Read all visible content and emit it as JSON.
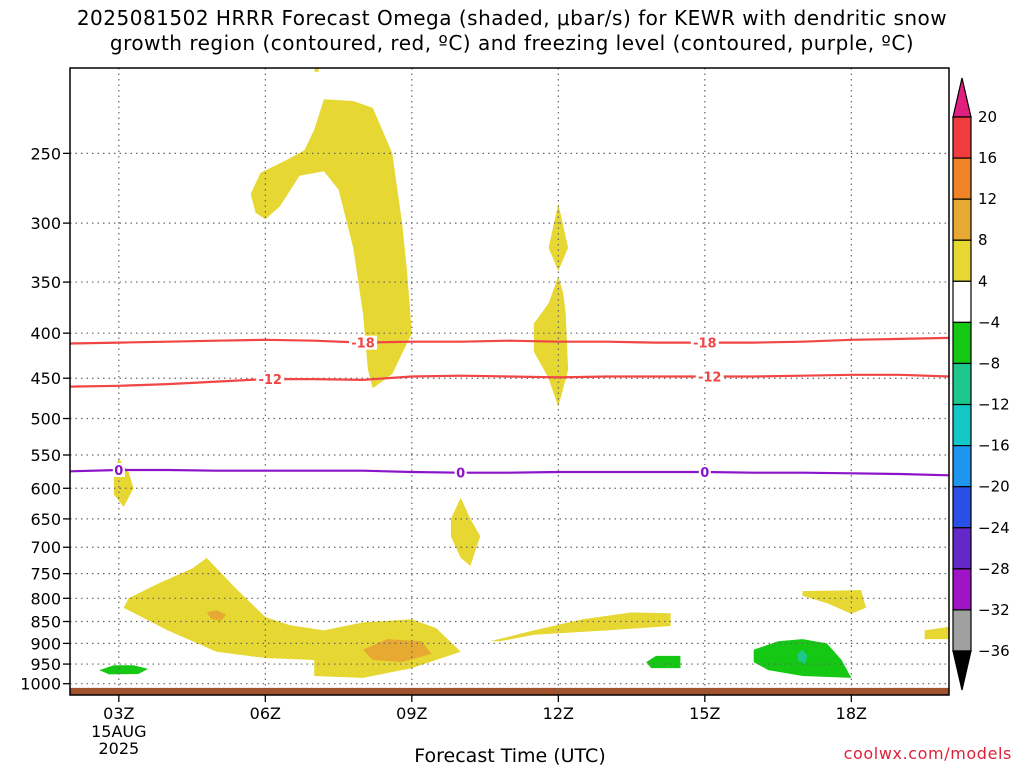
{
  "title_line1": "2025081502 HRRR Forecast Omega (shaded, μbar/s) for KEWR with dendritic snow",
  "title_line2": "growth region (contoured, red, ºC) and freezing level (contoured, purple, ºC)",
  "credit": "coolwx.com/models",
  "chart_data": {
    "type": "time-height cross section",
    "title": "2025081502 HRRR Forecast Omega (shaded, μbar/s) for KEWR with dendritic snow growth region (contoured, red, ºC) and freezing level (contoured, purple, ºC)",
    "xlabel": "Forecast Time (UTC)",
    "ylabel": "",
    "x_range_hours": [
      2,
      20
    ],
    "y_range_hPa": [
      200,
      1030
    ],
    "y_scale": "log-pressure (inverted)",
    "grid": true,
    "x_ticks": [
      {
        "hour": 3,
        "label": "03Z",
        "sub1": "15AUG",
        "sub2": "2025"
      },
      {
        "hour": 6,
        "label": "06Z"
      },
      {
        "hour": 9,
        "label": "09Z"
      },
      {
        "hour": 12,
        "label": "12Z"
      },
      {
        "hour": 15,
        "label": "15Z"
      },
      {
        "hour": 18,
        "label": "18Z"
      }
    ],
    "y_ticks": [
      250,
      300,
      350,
      400,
      450,
      500,
      550,
      600,
      650,
      700,
      750,
      800,
      850,
      900,
      950,
      1000
    ],
    "colorbar": {
      "levels": [
        "20",
        "16",
        "12",
        "8",
        "4",
        "−4",
        "−8",
        "−12",
        "−16",
        "−20",
        "−24",
        "−28",
        "−32",
        "−36"
      ],
      "colors": [
        "#e02080",
        "#f03c3c",
        "#f08228",
        "#e6aa32",
        "#e6d732",
        "#ffffff",
        "#14c814",
        "#1ec88c",
        "#14c8c8",
        "#1e96f0",
        "#2850e6",
        "#6428c8",
        "#a014c8",
        "#a0a0a0",
        "#000000"
      ]
    },
    "contours": [
      {
        "name": "dendritic -18",
        "color": "#f04646",
        "labels": [
          {
            "hour": 8.0,
            "text": "-18"
          },
          {
            "hour": 15.0,
            "text": "-18"
          }
        ],
        "points": [
          [
            2,
            411
          ],
          [
            3,
            410
          ],
          [
            4,
            409
          ],
          [
            5,
            408
          ],
          [
            6,
            407
          ],
          [
            7,
            408
          ],
          [
            8,
            410
          ],
          [
            9,
            409
          ],
          [
            10,
            409
          ],
          [
            11,
            408
          ],
          [
            12,
            409
          ],
          [
            13,
            409
          ],
          [
            14,
            410
          ],
          [
            15,
            410
          ],
          [
            16,
            410
          ],
          [
            17,
            409
          ],
          [
            18,
            407
          ],
          [
            19,
            406
          ],
          [
            20,
            405
          ]
        ]
      },
      {
        "name": "dendritic -12",
        "color": "#f04646",
        "labels": [
          {
            "hour": 6.1,
            "text": "-12"
          },
          {
            "hour": 15.1,
            "text": "-12"
          }
        ],
        "points": [
          [
            2,
            460
          ],
          [
            3,
            459
          ],
          [
            4,
            457
          ],
          [
            5,
            454
          ],
          [
            6,
            451
          ],
          [
            7,
            451
          ],
          [
            8,
            452
          ],
          [
            9,
            448
          ],
          [
            10,
            447
          ],
          [
            11,
            448
          ],
          [
            12,
            449
          ],
          [
            13,
            448
          ],
          [
            14,
            448
          ],
          [
            15,
            448
          ],
          [
            16,
            448
          ],
          [
            17,
            447
          ],
          [
            18,
            446
          ],
          [
            19,
            446
          ],
          [
            20,
            448
          ]
        ]
      },
      {
        "name": "freezing level 0",
        "color": "#8c14c8",
        "labels": [
          {
            "hour": 3.0,
            "text": "0"
          },
          {
            "hour": 10.0,
            "text": "0"
          },
          {
            "hour": 15.0,
            "text": "0"
          }
        ],
        "points": [
          [
            2,
            574
          ],
          [
            3,
            572
          ],
          [
            4,
            572
          ],
          [
            5,
            573
          ],
          [
            6,
            573
          ],
          [
            7,
            573
          ],
          [
            8,
            573
          ],
          [
            9,
            575
          ],
          [
            10,
            576
          ],
          [
            11,
            576
          ],
          [
            12,
            575
          ],
          [
            13,
            575
          ],
          [
            14,
            575
          ],
          [
            15,
            575
          ],
          [
            16,
            576
          ],
          [
            17,
            576
          ],
          [
            18,
            577
          ],
          [
            19,
            578
          ],
          [
            20,
            580
          ]
        ]
      }
    ],
    "omega_regions": [
      {
        "value": "4 to 8",
        "color": "#e6d732",
        "points": [
          [
            7.0,
            202
          ],
          [
            7.05,
            196
          ],
          [
            7.1,
            202
          ]
        ]
      },
      {
        "value": "4 to 8",
        "color": "#e6d732",
        "points": [
          [
            5.7,
            278
          ],
          [
            5.9,
            263
          ],
          [
            6.4,
            255
          ],
          [
            6.8,
            248
          ],
          [
            7.0,
            235
          ],
          [
            7.2,
            217
          ],
          [
            7.8,
            218
          ],
          [
            8.2,
            222
          ],
          [
            8.6,
            250
          ],
          [
            8.8,
            300
          ],
          [
            8.9,
            340
          ],
          [
            9.0,
            400
          ],
          [
            8.6,
            445
          ],
          [
            8.2,
            462
          ],
          [
            8.1,
            440
          ],
          [
            8.0,
            380
          ],
          [
            7.8,
            320
          ],
          [
            7.5,
            275
          ],
          [
            7.2,
            262
          ],
          [
            6.7,
            265
          ],
          [
            6.3,
            287
          ],
          [
            6.0,
            297
          ],
          [
            5.8,
            292
          ]
        ]
      },
      {
        "value": "4 to 8",
        "color": "#e6d732",
        "points": [
          [
            12.0,
            285
          ],
          [
            12.2,
            320
          ],
          [
            12.0,
            340
          ],
          [
            11.8,
            320
          ]
        ]
      },
      {
        "value": "4 to 8",
        "color": "#e6d732",
        "points": [
          [
            12.0,
            345
          ],
          [
            12.1,
            360
          ],
          [
            12.15,
            380
          ],
          [
            12.2,
            440
          ],
          [
            12.0,
            485
          ],
          [
            11.8,
            450
          ],
          [
            11.5,
            420
          ],
          [
            11.5,
            390
          ],
          [
            11.8,
            370
          ]
        ]
      },
      {
        "value": "4 to 8",
        "color": "#e6d732",
        "points": [
          [
            3.0,
            555
          ],
          [
            3.2,
            575
          ],
          [
            3.3,
            600
          ],
          [
            3.1,
            630
          ],
          [
            2.9,
            610
          ],
          [
            2.9,
            570
          ]
        ]
      },
      {
        "value": "4 to 8",
        "color": "#e6d732",
        "points": [
          [
            10.0,
            615
          ],
          [
            10.2,
            650
          ],
          [
            10.4,
            680
          ],
          [
            10.2,
            735
          ],
          [
            10.0,
            720
          ],
          [
            9.8,
            680
          ],
          [
            9.8,
            650
          ]
        ]
      },
      {
        "value": "4 to 8",
        "color": "#e6d732",
        "points": [
          [
            4.8,
            720
          ],
          [
            5.4,
            780
          ],
          [
            6.0,
            840
          ],
          [
            6.5,
            858
          ],
          [
            7.2,
            870
          ],
          [
            8.0,
            852
          ],
          [
            9.0,
            845
          ],
          [
            9.5,
            865
          ],
          [
            10.0,
            920
          ],
          [
            9.0,
            960
          ],
          [
            8.0,
            985
          ],
          [
            7.0,
            980
          ],
          [
            7.0,
            940
          ],
          [
            6.0,
            935
          ],
          [
            5.0,
            920
          ],
          [
            4.0,
            870
          ],
          [
            3.1,
            820
          ],
          [
            3.2,
            800
          ],
          [
            3.8,
            770
          ],
          [
            4.5,
            740
          ]
        ]
      },
      {
        "value": "4 to 8",
        "color": "#e6d732",
        "points": [
          [
            10.6,
            895
          ],
          [
            11.5,
            870
          ],
          [
            12.5,
            845
          ],
          [
            13.5,
            830
          ],
          [
            14.3,
            832
          ],
          [
            14.3,
            860
          ],
          [
            13.0,
            870
          ],
          [
            11.5,
            880
          ],
          [
            10.8,
            895
          ]
        ]
      },
      {
        "value": "4 to 8",
        "color": "#e6d732",
        "points": [
          [
            17.0,
            785
          ],
          [
            18.2,
            783
          ],
          [
            18.3,
            820
          ],
          [
            18.0,
            833
          ],
          [
            17.5,
            810
          ],
          [
            17.0,
            795
          ]
        ]
      },
      {
        "value": "4 to 8",
        "color": "#e6d732",
        "points": [
          [
            19.5,
            870
          ],
          [
            20.0,
            862
          ],
          [
            20.0,
            890
          ],
          [
            19.5,
            890
          ]
        ]
      },
      {
        "value": "8 to 12",
        "color": "#e6aa32",
        "points": [
          [
            8.0,
            915
          ],
          [
            8.5,
            890
          ],
          [
            9.2,
            895
          ],
          [
            9.4,
            925
          ],
          [
            8.8,
            945
          ],
          [
            8.2,
            940
          ]
        ]
      },
      {
        "value": "8 to 12",
        "color": "#e6aa32",
        "points": [
          [
            5.0,
            825
          ],
          [
            5.2,
            835
          ],
          [
            5.1,
            848
          ],
          [
            4.9,
            845
          ],
          [
            4.8,
            830
          ]
        ]
      },
      {
        "value": "-4 to -8",
        "color": "#14c814",
        "points": [
          [
            2.6,
            965
          ],
          [
            2.9,
            953
          ],
          [
            3.3,
            953
          ],
          [
            3.6,
            962
          ],
          [
            3.4,
            975
          ],
          [
            2.8,
            976
          ]
        ]
      },
      {
        "value": "-4 to -8",
        "color": "#14c814",
        "points": [
          [
            13.8,
            945
          ],
          [
            14.0,
            930
          ],
          [
            14.5,
            930
          ],
          [
            14.5,
            960
          ],
          [
            13.9,
            960
          ]
        ]
      },
      {
        "value": "-4 to -8",
        "color": "#14c814",
        "points": [
          [
            16.0,
            915
          ],
          [
            16.5,
            895
          ],
          [
            17.0,
            890
          ],
          [
            17.5,
            900
          ],
          [
            17.8,
            940
          ],
          [
            18.0,
            985
          ],
          [
            17.0,
            980
          ],
          [
            16.3,
            965
          ],
          [
            16.0,
            945
          ]
        ]
      },
      {
        "value": "-8 to -12",
        "color": "#1ec88c",
        "points": [
          [
            17.0,
            915
          ],
          [
            17.1,
            930
          ],
          [
            17.05,
            950
          ],
          [
            16.9,
            940
          ],
          [
            16.9,
            925
          ]
        ]
      }
    ],
    "surface_terrain": {
      "color": "#a0522d",
      "top_hPa": 1011
    }
  }
}
